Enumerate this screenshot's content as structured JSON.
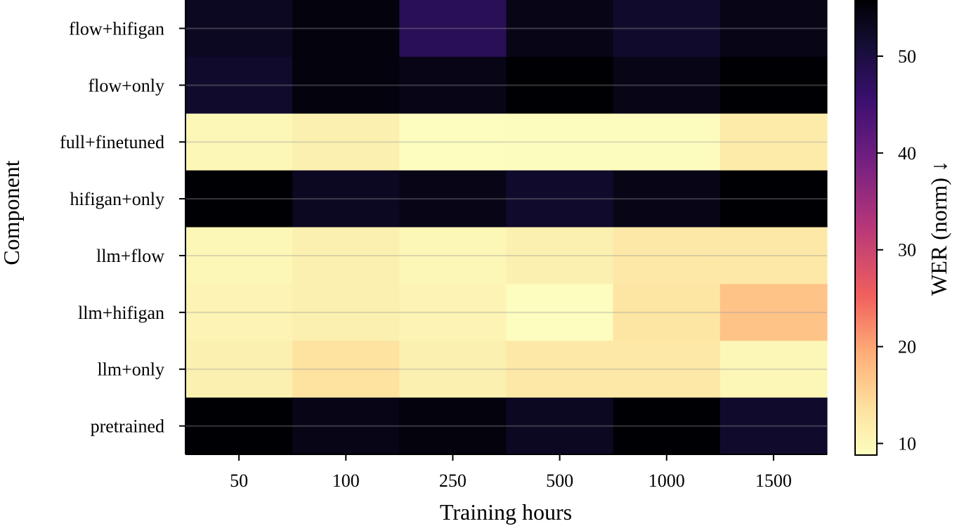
{
  "chart_data": {
    "type": "heatmap",
    "title": "",
    "xlabel": "Training hours",
    "ylabel": "Component",
    "x_categories": [
      "50",
      "100",
      "250",
      "500",
      "1000",
      "1500"
    ],
    "y_categories": [
      "flow+hifigan",
      "flow+only",
      "full+finetuned",
      "hifigan+only",
      "llm+flow",
      "llm+hifigan",
      "llm+only",
      "pretrained"
    ],
    "values": [
      [
        53,
        55,
        48,
        54,
        52,
        54
      ],
      [
        52,
        55,
        54,
        62,
        54,
        60
      ],
      [
        10,
        11,
        8.5,
        9,
        9,
        12
      ],
      [
        60,
        53,
        54,
        52,
        54,
        57
      ],
      [
        10,
        11,
        10,
        11,
        12.5,
        12.5
      ],
      [
        10.5,
        11,
        10.5,
        8.5,
        13,
        17
      ],
      [
        11,
        13.5,
        11,
        12.5,
        12.5,
        10
      ],
      [
        57,
        54,
        55,
        53,
        58,
        52
      ]
    ],
    "colormap": "magma_r",
    "colorbar": {
      "label": "WER (norm) ↓",
      "range": [
        8.8,
        55.8
      ],
      "ticks": [
        "10",
        "20",
        "30",
        "40",
        "50"
      ]
    },
    "grid": "horizontal lines at row centers",
    "legend": "colorbar right"
  }
}
